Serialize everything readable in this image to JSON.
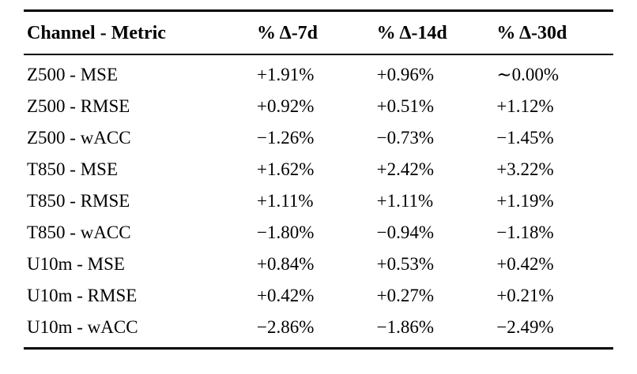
{
  "table": {
    "columns": [
      "Channel - Metric",
      "% Δ-7d",
      "% Δ-14d",
      "% Δ-30d"
    ],
    "rows": [
      {
        "label": "Z500 - MSE",
        "d7": "+1.91%",
        "d14": "+0.96%",
        "d30": "∼0.00%"
      },
      {
        "label": "Z500 - RMSE",
        "d7": "+0.92%",
        "d14": "+0.51%",
        "d30": "+1.12%"
      },
      {
        "label": "Z500 - wACC",
        "d7": "−1.26%",
        "d14": "−0.73%",
        "d30": "−1.45%"
      },
      {
        "label": "T850 - MSE",
        "d7": "+1.62%",
        "d14": "+2.42%",
        "d30": "+3.22%"
      },
      {
        "label": "T850 - RMSE",
        "d7": "+1.11%",
        "d14": "+1.11%",
        "d30": "+1.19%"
      },
      {
        "label": "T850 - wACC",
        "d7": "−1.80%",
        "d14": "−0.94%",
        "d30": "−1.18%"
      },
      {
        "label": "U10m - MSE",
        "d7": "+0.84%",
        "d14": "+0.53%",
        "d30": "+0.42%"
      },
      {
        "label": "U10m - RMSE",
        "d7": "+0.42%",
        "d14": "+0.27%",
        "d30": "+0.21%"
      },
      {
        "label": "U10m - wACC",
        "d7": "−2.86%",
        "d14": "−1.86%",
        "d30": "−2.49%"
      }
    ]
  }
}
